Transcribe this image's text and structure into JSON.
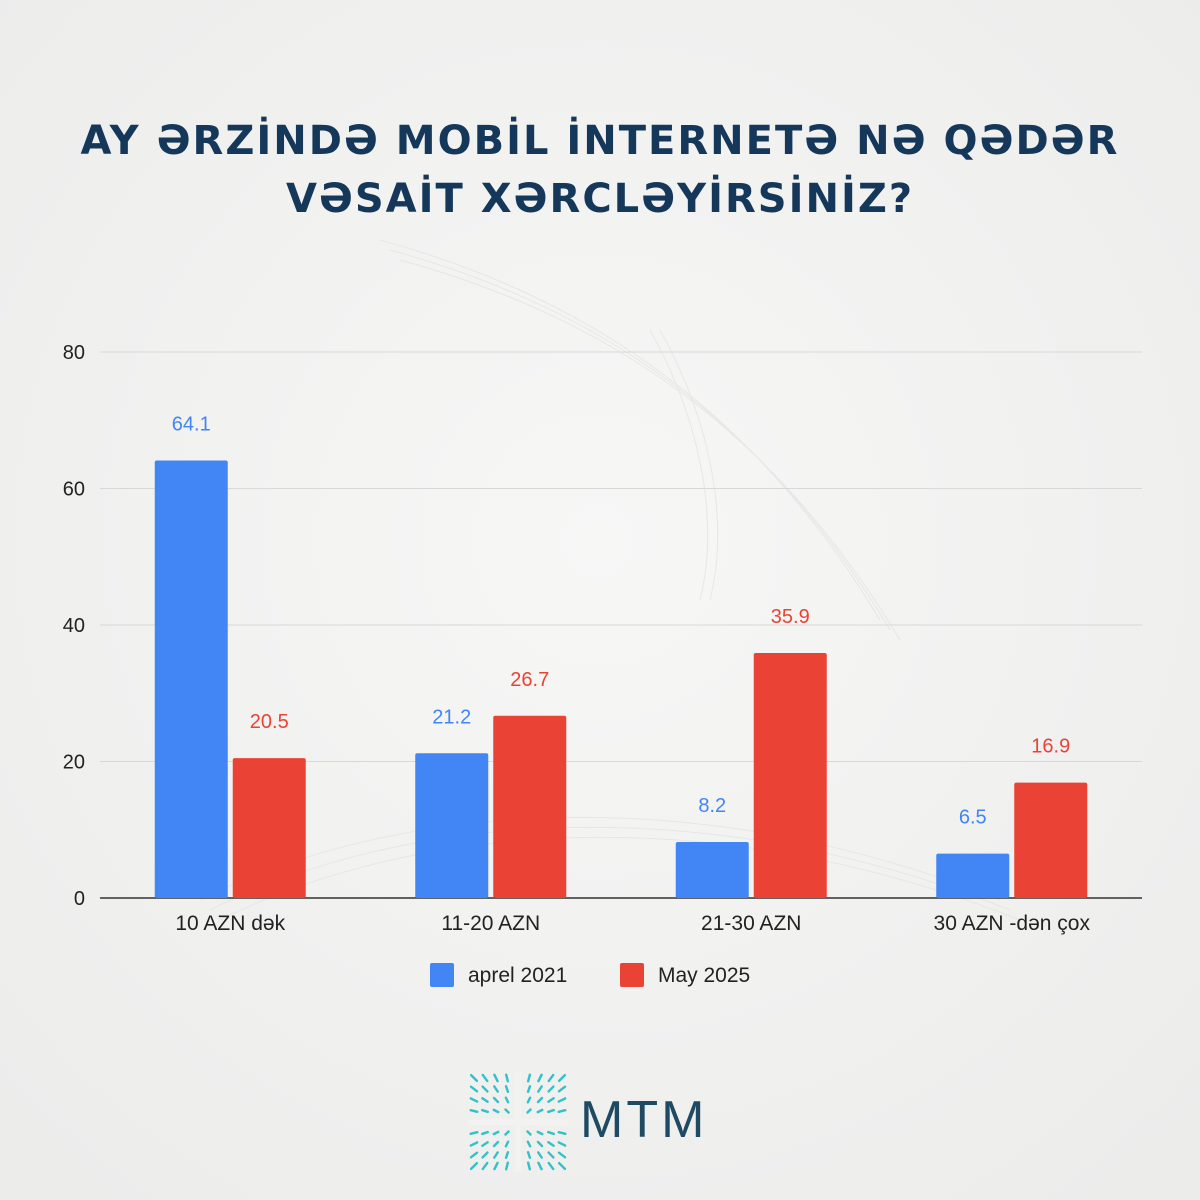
{
  "title_lines": [
    "AY ƏRZİNDƏ MOBİL İNTERNETƏ NƏ QƏDƏR",
    "VƏSAİT XƏRCLƏYİRSİNİZ?"
  ],
  "logo": {
    "text": "MTM",
    "color": "#1e4a63",
    "mark_color": "#33c1c9"
  },
  "colors": {
    "title": "#14375a",
    "background": "#f2f2f1",
    "grid": "#d8d8d8",
    "axis": "#333333"
  },
  "chart_data": {
    "type": "bar",
    "categories": [
      "10 AZN dək",
      "11-20 AZN",
      "21-30 AZN",
      "30 AZN -dən çox"
    ],
    "series": [
      {
        "name": "aprel 2021",
        "values": [
          64.1,
          21.2,
          8.2,
          6.5
        ],
        "color": "#4285f4"
      },
      {
        "name": "May 2025",
        "values": [
          20.5,
          26.7,
          35.9,
          16.9
        ],
        "color": "#ea4335"
      }
    ],
    "yticks": [
      0,
      20,
      40,
      60,
      80
    ],
    "ylim": [
      0,
      80
    ],
    "grid": true,
    "legend_position": "bottom-center",
    "data_labels": true
  }
}
